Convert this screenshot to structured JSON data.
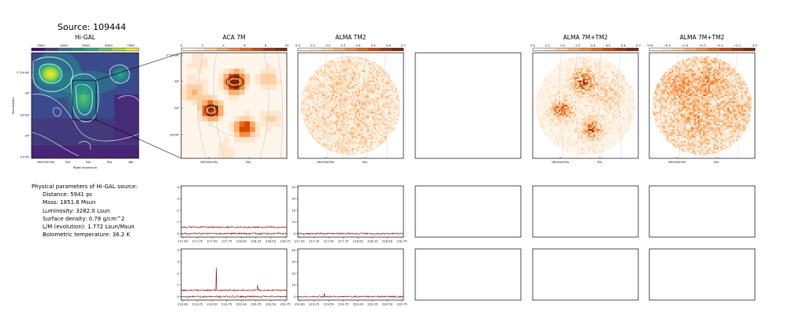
{
  "source_title": "Source: 109444",
  "panels": {
    "higal": {
      "title": "Hi-GAL",
      "colorbar_ticks": [
        "3000",
        "4000",
        "5000",
        "6000",
        "7000"
      ],
      "colorbar_colors": [
        "#3b0f70",
        "#433e85",
        "#2c728e",
        "#21918c",
        "#27ad81",
        "#5ec962",
        "#aadc32",
        "#fde725"
      ],
      "dec_ticks": [
        "-7°19'00\"",
        "30\"",
        "20'00\"",
        "30\"",
        "21'00\""
      ],
      "ra_ticks": [
        "18h34m54s",
        "54s",
        "52s",
        "50s",
        "48s"
      ],
      "xlabel": "Right Ascension",
      "ylabel": "Declination"
    },
    "aca7m": {
      "title": "ACA 7M",
      "colorbar_ticks": [
        "0",
        "2",
        "4",
        "6",
        "8",
        "10"
      ],
      "dec_ticks": [
        "-7°19'30\"",
        "40\"",
        "50\"",
        "20'00\""
      ],
      "ra_ticks": [
        "18h34m53s",
        "52s"
      ]
    },
    "almatm2": {
      "title": "ALMA TM2",
      "colorbar_ticks": [
        "0.0",
        "0.1",
        "0.2",
        "0.3",
        "0.4",
        "0.5",
        "0.6",
        "0.7"
      ],
      "ra_ticks": [
        "18h34m53s",
        "52s"
      ]
    },
    "alma7mtm2_a": {
      "title": "ALMA 7M+TM2",
      "colorbar_ticks": [
        "0.0",
        "0.1",
        "0.2",
        "0.3",
        "0.4",
        "0.5",
        "0.6",
        "0.7"
      ],
      "ra_ticks": [
        "18h34m53s",
        "52s"
      ]
    },
    "alma7mtm2_b": {
      "title": "ALMA 7M+TM2",
      "colorbar_ticks": [
        "−0.6",
        "−0.5",
        "−0.4",
        "−0.3",
        "−0.2",
        "−0.1",
        "0.0"
      ],
      "ra_ticks": [
        "18h34m53s",
        "52s"
      ]
    },
    "oranges": [
      "#fff5eb",
      "#fee6ce",
      "#fdd0a2",
      "#fdae6b",
      "#fd8d3c",
      "#f16913",
      "#d94801",
      "#a63603",
      "#7f2704"
    ],
    "spectrum_color": "#8b0000"
  },
  "params": {
    "header": "Physical parameters of Hi-GAL source:",
    "distance": "Distance: 5941 pc",
    "mass": "Mass: 1851.6 Msun",
    "luminosity": "Luminosity: 3282.0 Lsun",
    "surface_density": "Surface density: 0.78 g/cm^2",
    "lm": "L/M (evolution): 1.772 Lsun/Msun",
    "tbol": "Bolometric temperature: 36.2 K"
  },
  "spectra": {
    "row1_xticks": [
      "217.00",
      "217.25",
      "217.50",
      "217.75",
      "218.00",
      "218.25",
      "218.50",
      "218.75"
    ],
    "row2_xticks": [
      "219.00",
      "219.25",
      "219.50",
      "219.75",
      "220.00",
      "220.25",
      "220.50",
      "220.75"
    ],
    "aca_yticks": [
      "0",
      "1",
      "2",
      "3",
      "4"
    ],
    "alma_yticks": [
      "0",
      "10",
      "20",
      "30",
      "40"
    ]
  },
  "chart_data": [
    {
      "type": "heatmap",
      "title": "Hi-GAL",
      "xlabel": "Right Ascension",
      "ylabel": "Declination",
      "colorbar_range": [
        2500,
        7500
      ],
      "colormap": "viridis",
      "peaks": [
        {
          "ra_tick": "between 18h34m54s and 54s",
          "value": 7000
        },
        {
          "ra_tick": "52s",
          "value": 6000
        }
      ]
    },
    {
      "type": "heatmap",
      "title": "ACA 7M",
      "colorbar_range": [
        0,
        10
      ],
      "colormap": "oranges"
    },
    {
      "type": "heatmap",
      "title": "ALMA TM2",
      "colorbar_range": [
        0,
        0.7
      ],
      "colormap": "oranges"
    },
    {
      "type": "heatmap",
      "title": "ALMA 7M+TM2",
      "colorbar_range": [
        0,
        0.7
      ],
      "colormap": "oranges"
    },
    {
      "type": "heatmap",
      "title": "ALMA 7M+TM2",
      "colorbar_range": [
        -0.65,
        0
      ],
      "colormap": "oranges"
    },
    {
      "type": "line",
      "xlim": [
        217.0,
        218.8
      ],
      "ylim": [
        -0.3,
        4.1
      ],
      "series": [
        {
          "level": 0.55,
          "noise": 0.06
        },
        {
          "level": 0.0,
          "noise": 0.06
        }
      ]
    },
    {
      "type": "line",
      "xlim": [
        217.0,
        218.8
      ],
      "ylim": [
        -3,
        41
      ],
      "series": [
        {
          "level": 0.0,
          "noise": 0.6
        }
      ]
    },
    {
      "type": "line",
      "xlim": [
        219.0,
        220.8
      ],
      "ylim": [
        -0.3,
        4.1
      ],
      "series": [
        {
          "level": 0.55,
          "noise": 0.06,
          "spikes": [
            {
              "x": 219.6,
              "y": 2.5
            },
            {
              "x": 220.3,
              "y": 1.0
            }
          ]
        },
        {
          "level": 0.0,
          "noise": 0.06
        }
      ]
    },
    {
      "type": "line",
      "xlim": [
        219.0,
        220.8
      ],
      "ylim": [
        -3,
        41
      ],
      "series": [
        {
          "level": 0.0,
          "noise": 0.6,
          "spikes": [
            {
              "x": 219.45,
              "y": 3.0
            }
          ]
        }
      ]
    }
  ]
}
